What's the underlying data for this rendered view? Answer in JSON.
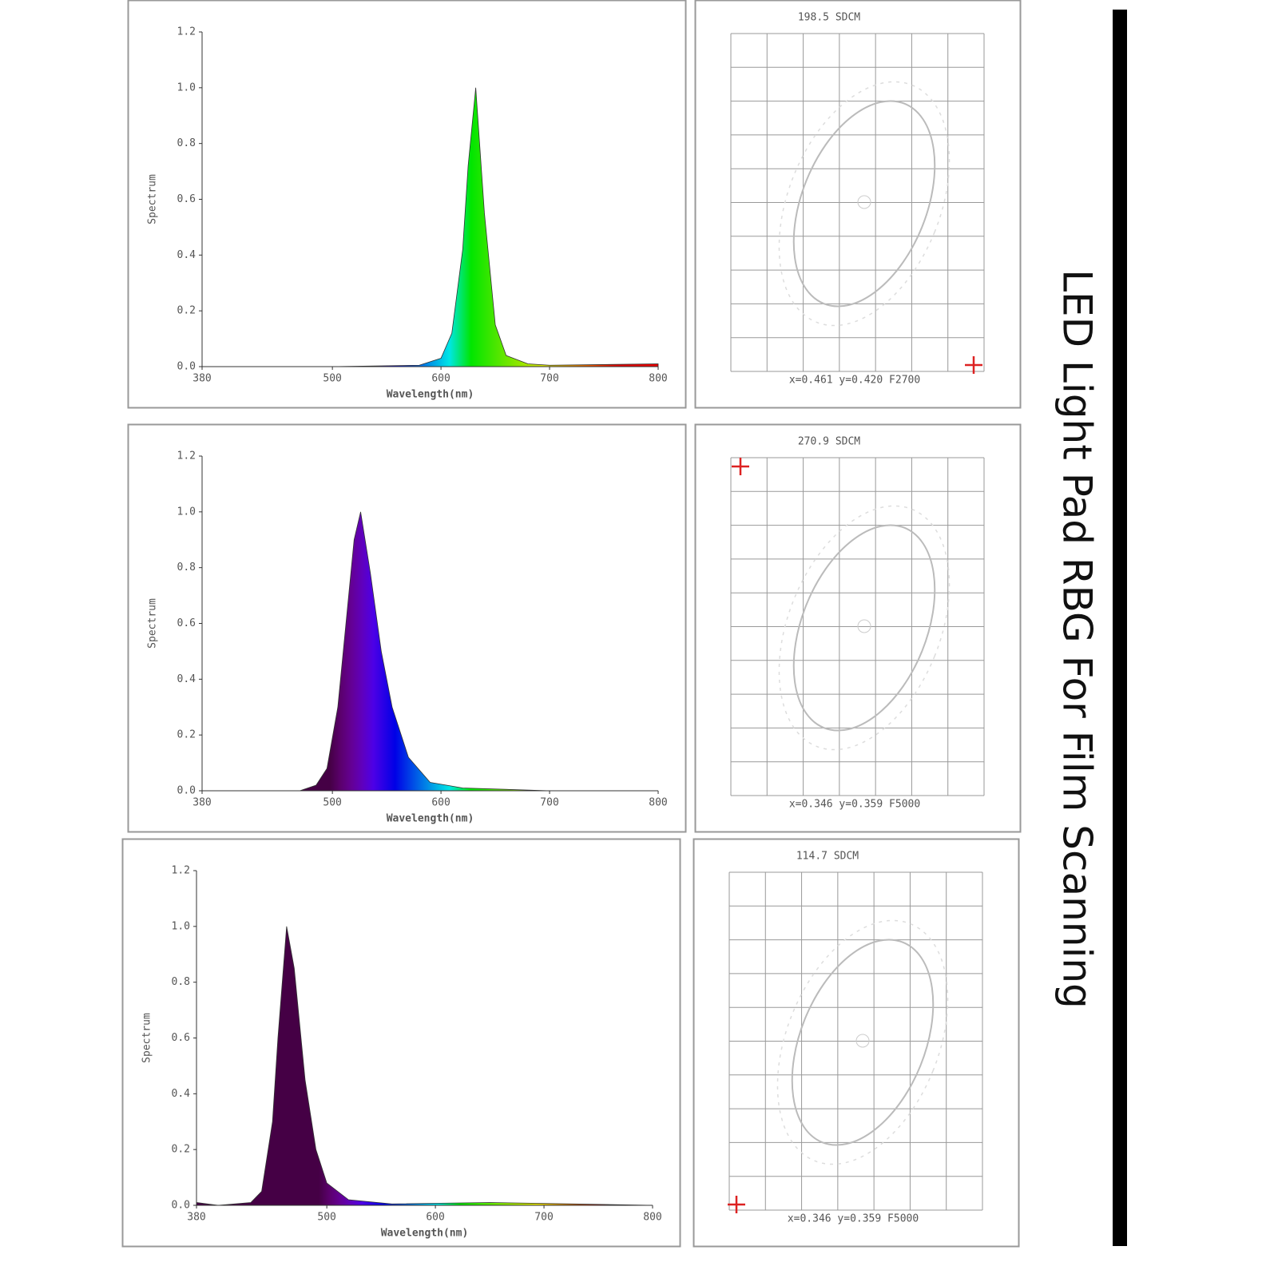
{
  "page_title": "LED Light Pad RBG For Film Scanning",
  "chart_data": [
    {
      "type": "area",
      "xlabel": "Wavelength(nm)",
      "ylabel": "Spectrum",
      "x": [
        380,
        500,
        580,
        600,
        610,
        620,
        625,
        632,
        640,
        650,
        660,
        680,
        700,
        800
      ],
      "values": [
        0,
        0,
        0.005,
        0.03,
        0.12,
        0.42,
        0.72,
        1.0,
        0.55,
        0.15,
        0.04,
        0.01,
        0.005,
        0.01
      ],
      "xlim": [
        380,
        800
      ],
      "xticks": [
        380,
        500,
        600,
        700,
        800
      ],
      "ylim": [
        0,
        1.2
      ],
      "yticks": [
        {
          "value": 0,
          "label": "0.0"
        },
        0.2,
        0.4,
        0.6,
        0.8,
        {
          "value": 1,
          "label": "1.0"
        },
        1.2
      ]
    },
    {
      "type": "area",
      "xlabel": "Wavelength(nm)",
      "ylabel": "Spectrum",
      "x": [
        380,
        470,
        485,
        495,
        505,
        515,
        520,
        526,
        535,
        545,
        555,
        570,
        590,
        620,
        700,
        800
      ],
      "values": [
        0,
        0,
        0.02,
        0.08,
        0.3,
        0.7,
        0.9,
        1.0,
        0.78,
        0.5,
        0.3,
        0.12,
        0.03,
        0.01,
        0,
        0
      ],
      "xlim": [
        380,
        800
      ],
      "xticks": [
        380,
        500,
        600,
        700,
        800
      ],
      "ylim": [
        0,
        1.2
      ],
      "yticks": [
        {
          "value": 0,
          "label": "0.0"
        },
        0.2,
        0.4,
        0.6,
        0.8,
        {
          "value": 1,
          "label": "1.0"
        },
        1.2
      ]
    },
    {
      "type": "area",
      "xlabel": "Wavelength(nm)",
      "ylabel": "Spectrum",
      "x": [
        380,
        400,
        430,
        440,
        450,
        455,
        463,
        470,
        480,
        490,
        500,
        520,
        560,
        650,
        800
      ],
      "values": [
        0.01,
        0,
        0.01,
        0.05,
        0.3,
        0.6,
        1.0,
        0.85,
        0.45,
        0.2,
        0.08,
        0.02,
        0.005,
        0.01,
        0
      ],
      "xlim": [
        380,
        800
      ],
      "xticks": [
        380,
        500,
        600,
        700,
        800
      ],
      "ylim": [
        0,
        1.2
      ],
      "yticks": [
        {
          "value": 0,
          "label": "0.0"
        },
        0.2,
        0.4,
        0.6,
        0.8,
        {
          "value": 1,
          "label": "1.0"
        },
        1.2
      ]
    }
  ],
  "chromaticity": [
    {
      "title": "198.5 SDCM",
      "caption": "x=0.461 y=0.420 F2700"
    },
    {
      "title": "270.9 SDCM",
      "caption": "x=0.346 y=0.359 F5000"
    },
    {
      "title": "114.7 SDCM",
      "caption": "x=0.346 y=0.359 F5000"
    }
  ]
}
